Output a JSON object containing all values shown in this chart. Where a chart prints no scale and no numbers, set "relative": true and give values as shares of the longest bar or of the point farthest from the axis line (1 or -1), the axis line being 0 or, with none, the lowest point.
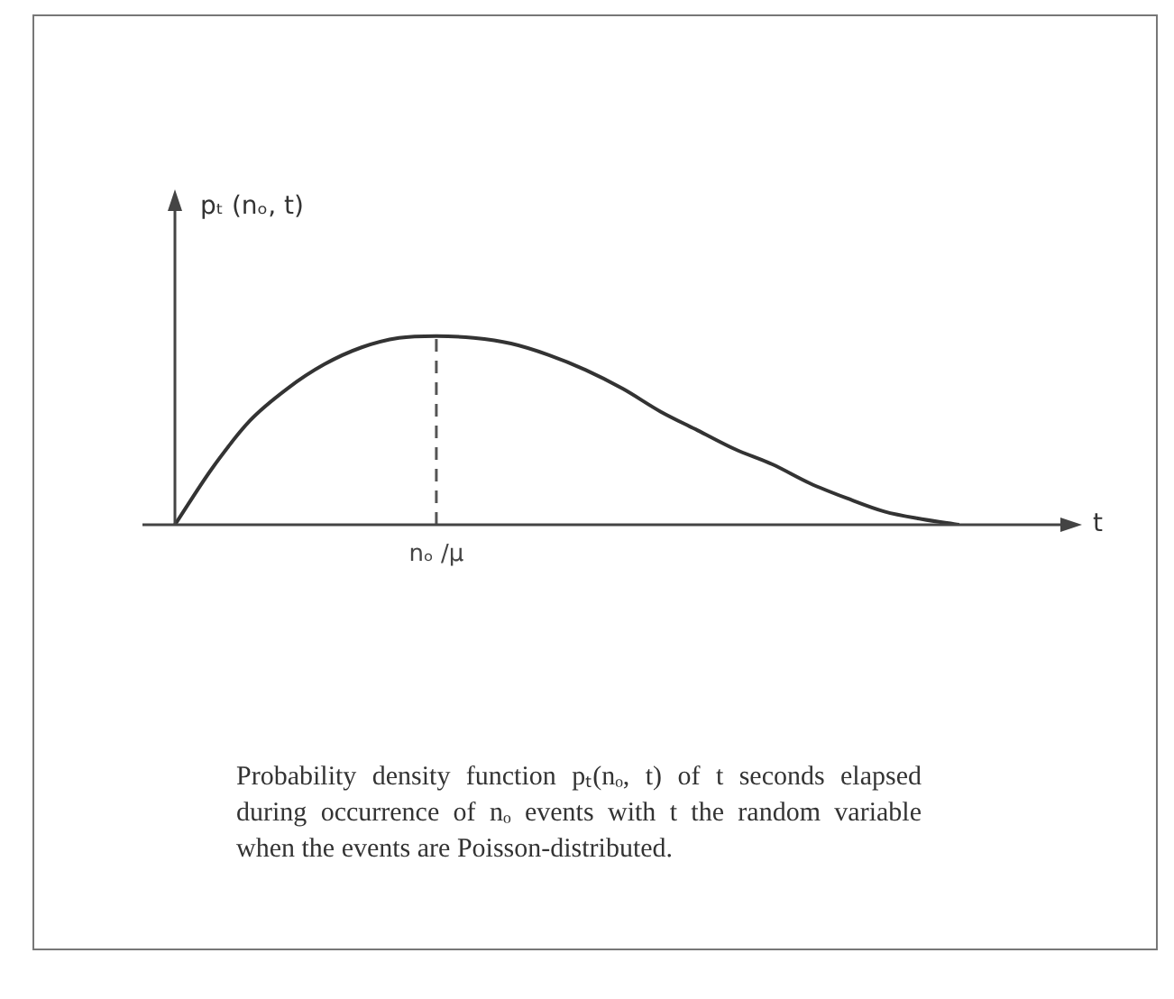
{
  "chart_data": {
    "type": "line",
    "relative": true,
    "ylabel": "pₜ (nₒ, t)",
    "xlabel": "t",
    "categories": [
      null,
      null,
      null,
      null,
      null,
      null,
      null,
      null,
      null,
      null,
      null,
      null,
      null,
      null,
      null,
      null,
      null,
      null,
      null,
      null,
      null,
      null,
      null,
      null,
      null
    ],
    "series": [
      {
        "color": "#333333",
        "values": [
          0,
          0.3,
          0.55,
          0.72,
          0.85,
          0.94,
          0.99,
          1,
          0.99,
          0.96,
          0.9,
          0.82,
          0.72,
          0.6,
          0.5,
          0.4,
          0.32,
          0.22,
          0.14,
          0.07,
          0.03,
          0,
          null,
          null,
          null
        ]
      }
    ],
    "ref_lines": [
      {
        "axis": "x",
        "value": "nₒ /μ",
        "line_style": "dashed",
        "color": "#555555"
      }
    ],
    "marker": "none",
    "line_style": "solid",
    "grid": false,
    "legend": false,
    "annotations": [
      "Probability density function pₜ(nₒ, t) of t seconds elapsed during occurrence of nₒ events with t the random variable when the events are Poisson-distributed."
    ]
  }
}
